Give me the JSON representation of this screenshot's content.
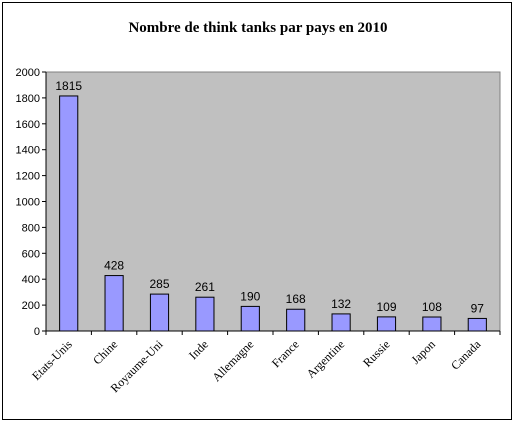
{
  "chart_data": {
    "type": "bar",
    "title": "Nombre de think tanks par pays en 2010",
    "xlabel": "",
    "ylabel": "",
    "categories": [
      "Etats-Unis",
      "Chine",
      "Royaume-Uni",
      "Inde",
      "Allemagne",
      "France",
      "Argentine",
      "Russie",
      "Japon",
      "Canada"
    ],
    "values": [
      1815,
      428,
      285,
      261,
      190,
      168,
      132,
      109,
      108,
      97
    ],
    "ylim": [
      0,
      2000
    ],
    "yticks": [
      "0",
      "200",
      "400",
      "600",
      "800",
      "1000",
      "1200",
      "1400",
      "1600",
      "1800",
      "2000"
    ],
    "grid": false,
    "legend": "none",
    "colors": {
      "bar_fill": "#9999ff",
      "bar_stroke": "#000000",
      "plot_background": "#c0c0c0",
      "chart_background": "#ffffff"
    }
  }
}
